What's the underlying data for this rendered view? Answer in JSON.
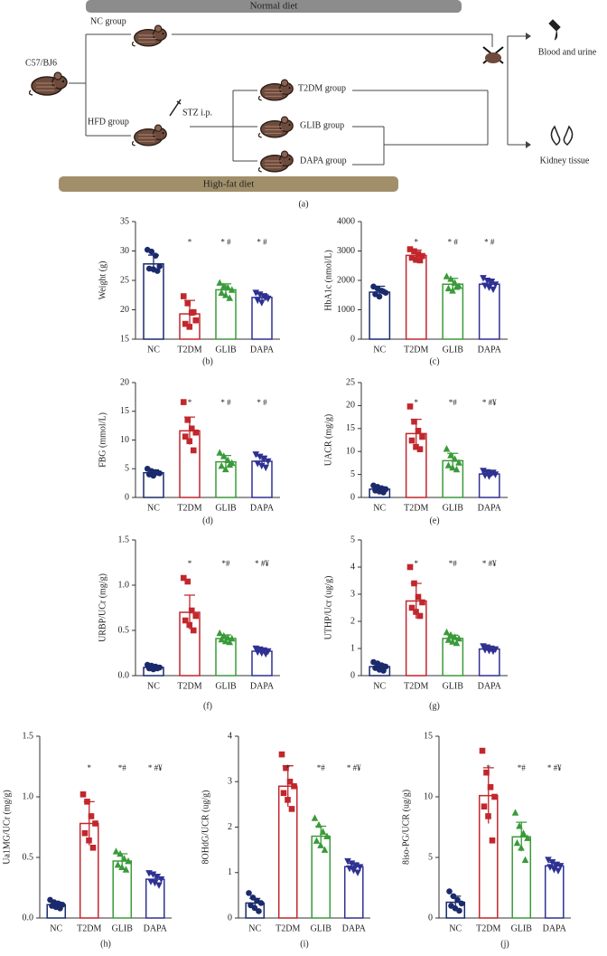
{
  "diagram": {
    "top_bar": "Normal diet",
    "start": "C57/BJ6",
    "nc_group": "NC group",
    "hfd_group": "HFD group",
    "stz": "STZ i.p.",
    "t2dm_group": "T2DM group",
    "glib_group": "GLIB group",
    "dapa_group": "DAPA group",
    "blood": "Blood and urine",
    "kidney": "Kidney tissue",
    "bottom_bar": "High-fat diet",
    "panel": "(a)"
  },
  "chart_data": [
    {
      "type": "bar",
      "panel": "(b)",
      "ylabel": "Weight (g)",
      "categories": [
        "NC",
        "T2DM",
        "GLIB",
        "DAPA"
      ],
      "values": [
        27.8,
        19.3,
        23.4,
        22.1
      ],
      "errors": [
        1.5,
        2.3,
        1.0,
        0.6
      ],
      "annotations": [
        null,
        "*",
        "* #",
        "* #"
      ],
      "colors": [
        "#1a2a6c",
        "#c1272d",
        "#3a9a3a",
        "#2e3192"
      ],
      "markers": [
        "circle",
        "square",
        "triangle-up",
        "triangle-down"
      ],
      "points": [
        [
          30.2,
          29.9,
          29.2,
          27.4,
          27.0,
          26.9,
          26.6
        ],
        [
          22.3,
          21.1,
          19.5,
          18.2,
          17.6,
          17.1,
          19.6
        ],
        [
          24.6,
          24.0,
          23.8,
          23.4,
          22.9,
          22.5,
          22.0
        ],
        [
          22.9,
          22.6,
          22.3,
          21.9,
          21.6,
          21.2,
          22.1
        ]
      ],
      "ylim": [
        15,
        35
      ],
      "yticks": [
        15,
        20,
        25,
        30,
        35
      ]
    },
    {
      "type": "bar",
      "panel": "(c)",
      "ylabel": "HbA1c (nmol/L)",
      "categories": [
        "NC",
        "T2DM",
        "GLIB",
        "DAPA"
      ],
      "values": [
        1600,
        2850,
        1870,
        1870
      ],
      "errors": [
        200,
        180,
        200,
        170
      ],
      "annotations": [
        null,
        "*",
        "* #",
        "* #"
      ],
      "colors": [
        "#1a2a6c",
        "#c1272d",
        "#3a9a3a",
        "#2e3192"
      ],
      "markers": [
        "circle",
        "square",
        "triangle-up",
        "triangle-down"
      ],
      "points": [
        [
          1790,
          1720,
          1650,
          1580,
          1530,
          1450,
          1620
        ],
        [
          3060,
          2990,
          2900,
          2830,
          2770,
          2700,
          2680
        ],
        [
          2140,
          2050,
          1920,
          1810,
          1730,
          1650,
          1780
        ],
        [
          2080,
          1990,
          1930,
          1860,
          1820,
          1760,
          1690
        ]
      ],
      "ylim": [
        0,
        4000
      ],
      "yticks": [
        0,
        1000,
        2000,
        3000,
        4000
      ]
    },
    {
      "type": "bar",
      "panel": "(d)",
      "ylabel": "FBG (mmol/L)",
      "categories": [
        "NC",
        "T2DM",
        "GLIB",
        "DAPA"
      ],
      "values": [
        4.3,
        11.6,
        6.2,
        6.3
      ],
      "errors": [
        0.5,
        2.4,
        1.1,
        0.9
      ],
      "annotations": [
        null,
        "*",
        "* #",
        "* #"
      ],
      "colors": [
        "#1a2a6c",
        "#c1272d",
        "#3a9a3a",
        "#2e3192"
      ],
      "markers": [
        "circle",
        "square",
        "triangle-up",
        "triangle-down"
      ],
      "points": [
        [
          5.0,
          4.6,
          4.4,
          4.2,
          4.0,
          3.8,
          4.3
        ],
        [
          16.6,
          13.5,
          12.0,
          11.3,
          10.6,
          9.8,
          8.2
        ],
        [
          7.8,
          7.2,
          6.5,
          6.0,
          5.5,
          4.9,
          5.7
        ],
        [
          7.5,
          7.1,
          6.7,
          6.3,
          5.9,
          5.5,
          5.2
        ]
      ],
      "ylim": [
        0,
        20
      ],
      "yticks": [
        0,
        5,
        10,
        15,
        20
      ]
    },
    {
      "type": "bar",
      "panel": "(e)",
      "ylabel": "UACR (mg/g)",
      "categories": [
        "NC",
        "T2DM",
        "GLIB",
        "DAPA"
      ],
      "values": [
        1.8,
        13.9,
        8.0,
        5.1
      ],
      "errors": [
        0.5,
        3.1,
        1.6,
        0.5
      ],
      "annotations": [
        null,
        "*",
        "*#",
        "* #¥"
      ],
      "colors": [
        "#1a2a6c",
        "#c1272d",
        "#3a9a3a",
        "#2e3192"
      ],
      "markers": [
        "circle",
        "square",
        "triangle-up",
        "triangle-down"
      ],
      "points": [
        [
          2.6,
          2.3,
          2.0,
          1.8,
          1.5,
          1.3,
          1.1
        ],
        [
          19.8,
          16.5,
          14.5,
          13.2,
          12.4,
          11.0,
          10.5
        ],
        [
          10.6,
          9.2,
          8.4,
          7.6,
          7.0,
          6.5,
          6.1
        ],
        [
          5.8,
          5.5,
          5.2,
          5.0,
          4.8,
          4.6,
          5.4
        ]
      ],
      "ylim": [
        0,
        25
      ],
      "yticks": [
        0,
        5,
        10,
        15,
        20,
        25
      ]
    },
    {
      "type": "bar",
      "panel": "(f)",
      "ylabel": "URBP/UCr (mg/g)",
      "categories": [
        "NC",
        "T2DM",
        "GLIB",
        "DAPA"
      ],
      "values": [
        0.09,
        0.7,
        0.41,
        0.27
      ],
      "errors": [
        0.02,
        0.19,
        0.04,
        0.02
      ],
      "annotations": [
        null,
        "*",
        "*#",
        "* #¥"
      ],
      "colors": [
        "#1a2a6c",
        "#c1272d",
        "#3a9a3a",
        "#2e3192"
      ],
      "markers": [
        "circle",
        "square",
        "triangle-up",
        "triangle-down"
      ],
      "points": [
        [
          0.12,
          0.11,
          0.1,
          0.09,
          0.08,
          0.07,
          0.08
        ],
        [
          1.08,
          1.04,
          0.72,
          0.66,
          0.61,
          0.56,
          0.5
        ],
        [
          0.47,
          0.44,
          0.42,
          0.41,
          0.4,
          0.38,
          0.37
        ],
        [
          0.3,
          0.29,
          0.28,
          0.27,
          0.26,
          0.25,
          0.24
        ]
      ],
      "ylim": [
        0,
        1.5
      ],
      "yticks": [
        {
          "value": 0,
          "label": "0.0"
        },
        {
          "value": 0.5,
          "label": "0.5"
        },
        {
          "value": 1,
          "label": "1.0"
        },
        {
          "value": 1.5,
          "label": "1.5"
        }
      ]
    },
    {
      "type": "bar",
      "panel": "(g)",
      "ylabel": "UTHP/Ucr (ug/g)",
      "categories": [
        "NC",
        "T2DM",
        "GLIB",
        "DAPA"
      ],
      "values": [
        0.33,
        2.75,
        1.37,
        0.98
      ],
      "errors": [
        0.1,
        0.65,
        0.12,
        0.06
      ],
      "annotations": [
        null,
        "*",
        "*#",
        "* #¥"
      ],
      "colors": [
        "#1a2a6c",
        "#c1272d",
        "#3a9a3a",
        "#2e3192"
      ],
      "markers": [
        "circle",
        "square",
        "triangle-up",
        "triangle-down"
      ],
      "points": [
        [
          0.5,
          0.45,
          0.38,
          0.33,
          0.28,
          0.22,
          0.18
        ],
        [
          4.0,
          3.4,
          2.9,
          2.7,
          2.5,
          2.35,
          2.2
        ],
        [
          1.6,
          1.5,
          1.42,
          1.37,
          1.32,
          1.25,
          1.2
        ],
        [
          1.08,
          1.04,
          1.0,
          0.97,
          0.95,
          0.92,
          0.9
        ]
      ],
      "ylim": [
        0,
        5
      ],
      "yticks": [
        0,
        1,
        2,
        3,
        4,
        5
      ]
    },
    {
      "type": "bar",
      "panel": "(h)",
      "ylabel": "Ua1MG/UCr (mg/g)",
      "categories": [
        "NC",
        "T2DM",
        "GLIB",
        "DAPA"
      ],
      "values": [
        0.11,
        0.78,
        0.47,
        0.32
      ],
      "errors": [
        0.02,
        0.18,
        0.06,
        0.04
      ],
      "annotations": [
        null,
        "*",
        "*#",
        "* #¥"
      ],
      "colors": [
        "#1a2a6c",
        "#c1272d",
        "#3a9a3a",
        "#2e3192"
      ],
      "markers": [
        "circle",
        "square",
        "triangle-up",
        "triangle-down"
      ],
      "points": [
        [
          0.15,
          0.13,
          0.12,
          0.11,
          0.1,
          0.09,
          0.08
        ],
        [
          1.02,
          0.96,
          0.84,
          0.78,
          0.7,
          0.64,
          0.58
        ],
        [
          0.55,
          0.53,
          0.49,
          0.47,
          0.44,
          0.42,
          0.4
        ],
        [
          0.37,
          0.36,
          0.34,
          0.32,
          0.3,
          0.29,
          0.27
        ]
      ],
      "ylim": [
        0,
        1.5
      ],
      "yticks": [
        {
          "value": 0,
          "label": "0.0"
        },
        {
          "value": 0.5,
          "label": "0.5"
        },
        {
          "value": 1,
          "label": "1.0"
        },
        {
          "value": 1.5,
          "label": "1.5"
        }
      ]
    },
    {
      "type": "bar",
      "panel": "(i)",
      "ylabel": "8OHdG/UCR (ug/g)",
      "categories": [
        "NC",
        "T2DM",
        "GLIB",
        "DAPA"
      ],
      "values": [
        0.33,
        2.9,
        1.8,
        1.13
      ],
      "errors": [
        0.1,
        0.45,
        0.22,
        0.07
      ],
      "annotations": [
        null,
        "*",
        "*#",
        "* #¥"
      ],
      "colors": [
        "#1a2a6c",
        "#c1272d",
        "#3a9a3a",
        "#2e3192"
      ],
      "markers": [
        "circle",
        "square",
        "triangle-up",
        "triangle-down"
      ],
      "points": [
        [
          0.55,
          0.45,
          0.38,
          0.33,
          0.28,
          0.22,
          0.15
        ],
        [
          3.6,
          3.3,
          3.0,
          2.9,
          2.75,
          2.6,
          2.4
        ],
        [
          2.2,
          2.05,
          1.9,
          1.8,
          1.7,
          1.6,
          1.5
        ],
        [
          1.25,
          1.2,
          1.16,
          1.12,
          1.09,
          1.05,
          1.0
        ]
      ],
      "ylim": [
        0,
        4
      ],
      "yticks": [
        0,
        1,
        2,
        3,
        4
      ]
    },
    {
      "type": "bar",
      "panel": "(j)",
      "ylabel": "8iso-PG/UCR (ug/g)",
      "categories": [
        "NC",
        "T2DM",
        "GLIB",
        "DAPA"
      ],
      "values": [
        1.3,
        10.1,
        6.7,
        4.3
      ],
      "errors": [
        0.5,
        2.3,
        1.2,
        0.3
      ],
      "annotations": [
        null,
        "*",
        "*#",
        "* #¥"
      ],
      "colors": [
        "#1a2a6c",
        "#c1272d",
        "#3a9a3a",
        "#2e3192"
      ],
      "markers": [
        "circle",
        "square",
        "triangle-up",
        "triangle-down"
      ],
      "points": [
        [
          2.2,
          1.8,
          1.5,
          1.2,
          1.0,
          0.8,
          0.6
        ],
        [
          13.8,
          12.0,
          10.8,
          10.0,
          9.2,
          8.4,
          6.4
        ],
        [
          8.7,
          7.6,
          7.0,
          6.6,
          6.2,
          5.8,
          4.8
        ],
        [
          4.8,
          4.6,
          4.4,
          4.3,
          4.2,
          4.0,
          3.9
        ]
      ],
      "ylim": [
        0,
        15
      ],
      "yticks": [
        0,
        5,
        10,
        15
      ]
    }
  ]
}
